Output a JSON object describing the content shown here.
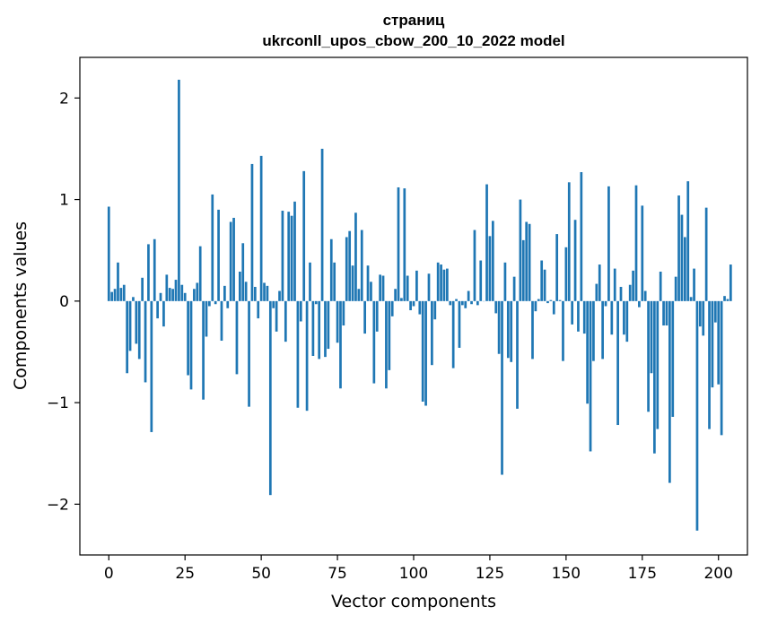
{
  "chart_data": {
    "type": "bar",
    "title": "страниц",
    "subtitle": "ukrconll_upos_cbow_200_10_2022 model",
    "xlabel": "Vector components",
    "ylabel": "Components values",
    "xlim": [
      -9.5,
      209.5
    ],
    "ylim": [
      -2.5,
      2.4
    ],
    "xticks": [
      0,
      25,
      50,
      75,
      100,
      125,
      150,
      175,
      200
    ],
    "yticks": [
      -2,
      -1,
      0,
      1,
      2
    ],
    "ytick_labels": [
      "−2",
      "−1",
      "0",
      "1",
      "2"
    ],
    "grid": false,
    "bar_color": "#1f77b4",
    "values": [
      0.93,
      0.09,
      0.12,
      0.38,
      0.13,
      0.16,
      -0.71,
      -0.49,
      0.04,
      -0.42,
      -0.57,
      0.23,
      -0.8,
      0.56,
      -1.29,
      0.61,
      -0.17,
      0.08,
      -0.25,
      0.26,
      0.13,
      0.12,
      0.21,
      2.18,
      0.16,
      0.08,
      -0.73,
      -0.87,
      0.12,
      0.18,
      0.54,
      -0.97,
      -0.35,
      -0.05,
      1.05,
      -0.03,
      0.9,
      -0.39,
      0.15,
      -0.07,
      0.78,
      0.82,
      -0.72,
      0.29,
      0.57,
      0.19,
      -1.04,
      1.35,
      0.14,
      -0.17,
      1.43,
      0.18,
      0.15,
      -1.91,
      -0.07,
      -0.3,
      0.1,
      0.89,
      -0.4,
      0.88,
      0.84,
      0.98,
      -1.05,
      -0.2,
      1.28,
      -1.08,
      0.38,
      -0.54,
      -0.03,
      -0.57,
      1.5,
      -0.55,
      -0.47,
      0.61,
      0.38,
      -0.41,
      -0.86,
      -0.24,
      0.63,
      0.69,
      0.35,
      0.87,
      0.12,
      0.7,
      -0.32,
      0.35,
      0.19,
      -0.81,
      -0.3,
      0.26,
      0.25,
      -0.86,
      -0.68,
      -0.15,
      0.12,
      1.12,
      0.03,
      1.11,
      0.25,
      -0.09,
      -0.05,
      0.3,
      -0.13,
      -0.99,
      -1.03,
      0.27,
      -0.63,
      -0.18,
      0.38,
      0.36,
      0.31,
      0.32,
      -0.04,
      -0.66,
      0.02,
      -0.46,
      -0.04,
      -0.07,
      0.1,
      -0.03,
      0.7,
      -0.04,
      0.4,
      0.0,
      1.15,
      0.64,
      0.79,
      -0.12,
      -0.52,
      -1.71,
      0.38,
      -0.56,
      -0.6,
      0.24,
      -1.06,
      1.0,
      0.6,
      0.78,
      0.76,
      -0.57,
      -0.1,
      0.02,
      0.4,
      0.31,
      -0.02,
      0.01,
      -0.13,
      0.66,
      0.01,
      -0.59,
      0.53,
      1.17,
      -0.23,
      0.8,
      -0.3,
      1.27,
      -0.32,
      -1.01,
      -1.48,
      -0.59,
      0.17,
      0.36,
      -0.57,
      -0.05,
      1.13,
      -0.33,
      0.32,
      -1.22,
      0.14,
      -0.33,
      -0.4,
      0.16,
      0.3,
      1.14,
      -0.06,
      0.94,
      0.1,
      -1.09,
      -0.71,
      -1.5,
      -1.26,
      0.29,
      -0.24,
      -0.24,
      -1.79,
      -1.14,
      0.24,
      1.04,
      0.85,
      0.63,
      1.18,
      0.04,
      0.32,
      -2.26,
      -0.25,
      -0.34,
      0.92,
      -1.26,
      -0.85,
      -0.21,
      -0.82,
      -1.32,
      0.05,
      0.02,
      0.36
    ]
  }
}
